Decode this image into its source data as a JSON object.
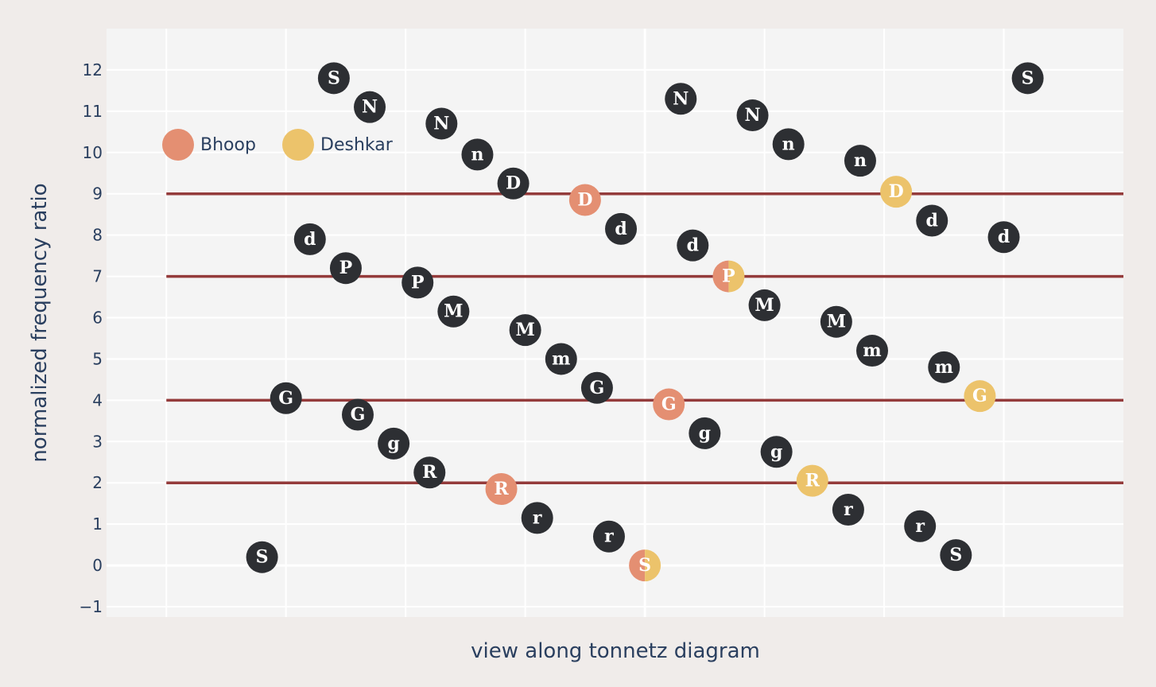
{
  "chart_data": {
    "type": "scatter",
    "title": "",
    "xlabel": "view along tonnetz diagram",
    "ylabel": "normalized frequency ratio",
    "xlim": [
      -0.5,
      8.0
    ],
    "ylim": [
      -1.25,
      13.0
    ],
    "yticks": [
      -1,
      0,
      1,
      2,
      3,
      4,
      5,
      6,
      7,
      8,
      9,
      10,
      11,
      12
    ],
    "ytick_labels": [
      "−1",
      "0",
      "1",
      "2",
      "3",
      "4",
      "5",
      "6",
      "7",
      "8",
      "9",
      "10",
      "11",
      "12"
    ],
    "x_gridlines": [
      0,
      1,
      2,
      3,
      4,
      5,
      6,
      7
    ],
    "grid": true,
    "legend_position": "top-left",
    "colors": {
      "note": "#2d2f33",
      "bhoop": "#e48f72",
      "deshkar": "#ecc36b",
      "hline": "#943b3b",
      "plot_bg": "#f4f4f4",
      "paper_bg": "#f0ecea"
    },
    "legend": [
      {
        "name": "Bhoop",
        "color": "#e48f72"
      },
      {
        "name": "Deshkar",
        "color": "#ecc36b"
      }
    ],
    "horizontal_lines": [
      {
        "y": 9,
        "x_range": [
          0,
          8
        ]
      },
      {
        "y": 7,
        "x_range": [
          0,
          8
        ]
      },
      {
        "y": 4,
        "x_range": [
          0,
          8
        ]
      },
      {
        "y": 2,
        "x_range": [
          0,
          8
        ]
      }
    ],
    "notes": [
      {
        "label": "S",
        "x": 0.8,
        "y": 0.2,
        "style": "note"
      },
      {
        "label": "G",
        "x": 1.0,
        "y": 4.05,
        "style": "note"
      },
      {
        "label": "d",
        "x": 1.2,
        "y": 7.9,
        "style": "note"
      },
      {
        "label": "S",
        "x": 1.4,
        "y": 11.8,
        "style": "note"
      },
      {
        "label": "P",
        "x": 1.5,
        "y": 7.2,
        "style": "note"
      },
      {
        "label": "G",
        "x": 1.6,
        "y": 3.65,
        "style": "note"
      },
      {
        "label": "N",
        "x": 1.7,
        "y": 11.1,
        "style": "note"
      },
      {
        "label": "g",
        "x": 1.9,
        "y": 2.95,
        "style": "note"
      },
      {
        "label": "P",
        "x": 2.1,
        "y": 6.85,
        "style": "note"
      },
      {
        "label": "R",
        "x": 2.2,
        "y": 2.25,
        "style": "note"
      },
      {
        "label": "N",
        "x": 2.3,
        "y": 10.7,
        "style": "note"
      },
      {
        "label": "M",
        "x": 2.4,
        "y": 6.15,
        "style": "note"
      },
      {
        "label": "n",
        "x": 2.6,
        "y": 9.95,
        "style": "note"
      },
      {
        "label": "R",
        "x": 2.8,
        "y": 1.85,
        "style": "bhoop"
      },
      {
        "label": "D",
        "x": 2.9,
        "y": 9.25,
        "style": "note"
      },
      {
        "label": "M",
        "x": 3.0,
        "y": 5.7,
        "style": "note"
      },
      {
        "label": "r",
        "x": 3.1,
        "y": 1.15,
        "style": "note"
      },
      {
        "label": "m",
        "x": 3.3,
        "y": 5.0,
        "style": "note"
      },
      {
        "label": "D",
        "x": 3.5,
        "y": 8.85,
        "style": "bhoop"
      },
      {
        "label": "G",
        "x": 3.6,
        "y": 4.3,
        "style": "note"
      },
      {
        "label": "r",
        "x": 3.7,
        "y": 0.7,
        "style": "note"
      },
      {
        "label": "d",
        "x": 3.8,
        "y": 8.15,
        "style": "note"
      },
      {
        "label": "S",
        "x": 4.0,
        "y": 0.0,
        "style": "both"
      },
      {
        "label": "G",
        "x": 4.2,
        "y": 3.9,
        "style": "bhoop"
      },
      {
        "label": "N",
        "x": 4.3,
        "y": 11.3,
        "style": "note"
      },
      {
        "label": "d",
        "x": 4.4,
        "y": 7.75,
        "style": "note"
      },
      {
        "label": "g",
        "x": 4.5,
        "y": 3.2,
        "style": "note"
      },
      {
        "label": "P",
        "x": 4.7,
        "y": 7.0,
        "style": "both"
      },
      {
        "label": "N",
        "x": 4.9,
        "y": 10.9,
        "style": "note"
      },
      {
        "label": "M",
        "x": 5.0,
        "y": 6.3,
        "style": "note"
      },
      {
        "label": "g",
        "x": 5.1,
        "y": 2.75,
        "style": "note"
      },
      {
        "label": "n",
        "x": 5.2,
        "y": 10.2,
        "style": "note"
      },
      {
        "label": "R",
        "x": 5.4,
        "y": 2.05,
        "style": "deshkar"
      },
      {
        "label": "M",
        "x": 5.6,
        "y": 5.9,
        "style": "note"
      },
      {
        "label": "r",
        "x": 5.7,
        "y": 1.35,
        "style": "note"
      },
      {
        "label": "n",
        "x": 5.8,
        "y": 9.8,
        "style": "note"
      },
      {
        "label": "m",
        "x": 5.9,
        "y": 5.2,
        "style": "note"
      },
      {
        "label": "D",
        "x": 6.1,
        "y": 9.05,
        "style": "deshkar"
      },
      {
        "label": "r",
        "x": 6.3,
        "y": 0.95,
        "style": "note"
      },
      {
        "label": "d",
        "x": 6.4,
        "y": 8.35,
        "style": "note"
      },
      {
        "label": "m",
        "x": 6.5,
        "y": 4.8,
        "style": "note"
      },
      {
        "label": "S",
        "x": 6.6,
        "y": 0.25,
        "style": "note"
      },
      {
        "label": "G",
        "x": 6.8,
        "y": 4.1,
        "style": "deshkar"
      },
      {
        "label": "d",
        "x": 7.0,
        "y": 7.95,
        "style": "note"
      },
      {
        "label": "S",
        "x": 7.2,
        "y": 11.8,
        "style": "note"
      }
    ]
  }
}
